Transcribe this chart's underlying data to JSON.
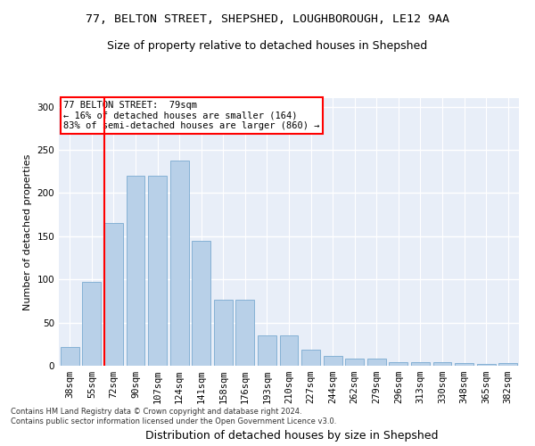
{
  "title1": "77, BELTON STREET, SHEPSHED, LOUGHBOROUGH, LE12 9AA",
  "title2": "Size of property relative to detached houses in Shepshed",
  "xlabel": "Distribution of detached houses by size in Shepshed",
  "ylabel": "Number of detached properties",
  "footer1": "Contains HM Land Registry data © Crown copyright and database right 2024.",
  "footer2": "Contains public sector information licensed under the Open Government Licence v3.0.",
  "categories": [
    "38sqm",
    "55sqm",
    "72sqm",
    "90sqm",
    "107sqm",
    "124sqm",
    "141sqm",
    "158sqm",
    "176sqm",
    "193sqm",
    "210sqm",
    "227sqm",
    "244sqm",
    "262sqm",
    "279sqm",
    "296sqm",
    "313sqm",
    "330sqm",
    "348sqm",
    "365sqm",
    "382sqm"
  ],
  "values": [
    22,
    97,
    165,
    220,
    220,
    238,
    145,
    76,
    76,
    35,
    35,
    19,
    11,
    8,
    8,
    4,
    4,
    4,
    3,
    2,
    3
  ],
  "bar_color": "#b8d0e8",
  "bar_edge_color": "#7aaad0",
  "annotation_box_text": "77 BELTON STREET:  79sqm\n← 16% of detached houses are smaller (164)\n83% of semi-detached houses are larger (860) →",
  "annotation_box_color": "white",
  "annotation_box_edge_color": "red",
  "vline_color": "red",
  "vline_x": 2.5,
  "ylim": [
    0,
    310
  ],
  "yticks": [
    0,
    50,
    100,
    150,
    200,
    250,
    300
  ],
  "background_color": "#e8eef8",
  "grid_color": "white",
  "title1_fontsize": 9.5,
  "title2_fontsize": 9,
  "xlabel_fontsize": 9,
  "ylabel_fontsize": 8,
  "tick_fontsize": 7.5,
  "footer_fontsize": 6
}
